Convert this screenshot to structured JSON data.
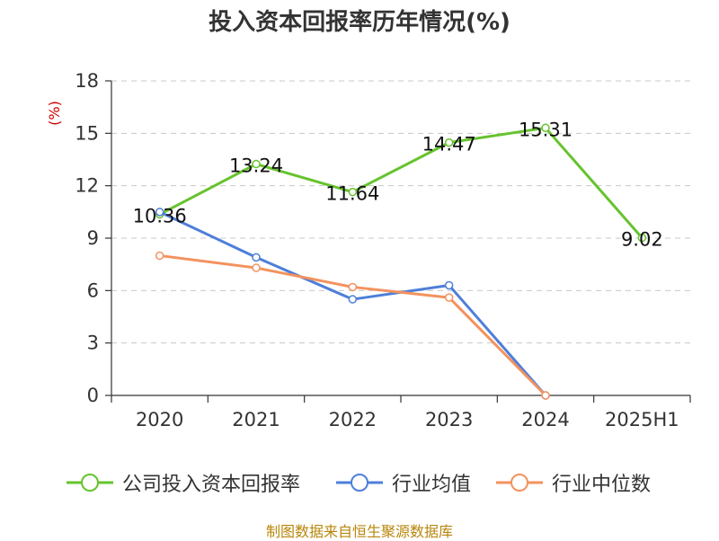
{
  "title": "投入资本回报率历年情况(%)",
  "source": "制图数据来自恒生聚源数据库",
  "chart_data": {
    "type": "line",
    "title": "投入资本回报率历年情况(%)",
    "ylabel": "(%)",
    "xlabel": "",
    "ylim": [
      0,
      18
    ],
    "yticks": [
      0,
      3,
      6,
      9,
      12,
      15,
      18
    ],
    "ytick_labels": [
      "0",
      "3",
      "6",
      "9",
      "12",
      "15",
      "18"
    ],
    "categories": [
      "2020",
      "2021",
      "2022",
      "2023",
      "2024",
      "2025H1"
    ],
    "grid": true,
    "legend_position": "bottom",
    "series": [
      {
        "name": "公司投入资本回报率",
        "color": "#66c32e",
        "values": [
          10.36,
          13.24,
          11.64,
          14.47,
          15.31,
          9.02
        ],
        "labels": [
          "10.36",
          "13.24",
          "11.64",
          "14.47",
          "15.31",
          "9.02"
        ]
      },
      {
        "name": "行业均值",
        "color": "#4e7fd9",
        "values": [
          10.5,
          7.9,
          5.5,
          6.3,
          0,
          null
        ]
      },
      {
        "name": "行业中位数",
        "color": "#f3925e",
        "values": [
          8.0,
          7.3,
          6.2,
          5.6,
          0,
          null
        ]
      }
    ]
  }
}
